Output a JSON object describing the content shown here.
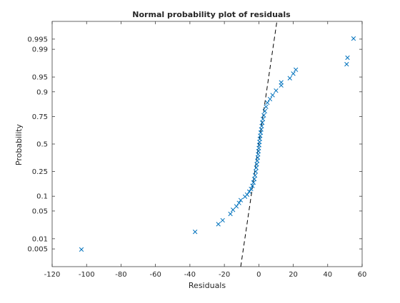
{
  "chart_data": {
    "type": "scatter",
    "title": "Normal probability plot of residuals",
    "xlabel": "Residuals",
    "ylabel": "Probability",
    "xlim": [
      -120,
      60
    ],
    "x_ticks": [
      -120,
      -100,
      -80,
      -60,
      -40,
      -20,
      0,
      20,
      40,
      60
    ],
    "y_scale": "normal-probability",
    "y_ticks": [
      "0.005",
      "0.01",
      "0.05",
      "0.1",
      "0.25",
      "0.5",
      "0.75",
      "0.9",
      "0.95",
      "0.99",
      "0.995"
    ],
    "grid": false,
    "marker": "x",
    "marker_color": "#0072BD",
    "reference_line": {
      "style": "dashed",
      "color": "#000000",
      "points": [
        [
          -10.5,
          0.0013
        ],
        [
          10.5,
          0.9987
        ]
      ]
    },
    "series": [
      {
        "points": [
          [
            -103.0,
            0.0048
          ],
          [
            -37.0,
            0.0155
          ],
          [
            -23.5,
            0.0245
          ],
          [
            -21.0,
            0.0305
          ],
          [
            -16.5,
            0.043
          ],
          [
            -15.0,
            0.053
          ],
          [
            -13.0,
            0.063
          ],
          [
            -11.5,
            0.074
          ],
          [
            -10.5,
            0.084
          ],
          [
            -8.0,
            0.098
          ],
          [
            -6.8,
            0.107
          ],
          [
            -5.5,
            0.121
          ],
          [
            -4.5,
            0.135
          ],
          [
            -3.7,
            0.152
          ],
          [
            -3.1,
            0.172
          ],
          [
            -2.6,
            0.195
          ],
          [
            -2.2,
            0.22
          ],
          [
            -1.8,
            0.25
          ],
          [
            -1.5,
            0.28
          ],
          [
            -1.2,
            0.31
          ],
          [
            -0.9,
            0.34
          ],
          [
            -0.6,
            0.37
          ],
          [
            -0.4,
            0.4
          ],
          [
            -0.2,
            0.43
          ],
          [
            0.0,
            0.46
          ],
          [
            0.2,
            0.49
          ],
          [
            0.4,
            0.52
          ],
          [
            0.6,
            0.55
          ],
          [
            0.8,
            0.58
          ],
          [
            1.1,
            0.61
          ],
          [
            1.4,
            0.64
          ],
          [
            1.7,
            0.67
          ],
          [
            2.0,
            0.7
          ],
          [
            2.4,
            0.73
          ],
          [
            2.9,
            0.76
          ],
          [
            3.5,
            0.79
          ],
          [
            4.2,
            0.82
          ],
          [
            5.0,
            0.845
          ],
          [
            6.5,
            0.865
          ],
          [
            8.0,
            0.885
          ],
          [
            10.0,
            0.905
          ],
          [
            13.0,
            0.925
          ],
          [
            13.0,
            0.935
          ],
          [
            18.0,
            0.947
          ],
          [
            20.0,
            0.958
          ],
          [
            21.5,
            0.966
          ],
          [
            51.0,
            0.975
          ],
          [
            51.5,
            0.983
          ],
          [
            55.0,
            0.9952
          ]
        ]
      }
    ]
  }
}
